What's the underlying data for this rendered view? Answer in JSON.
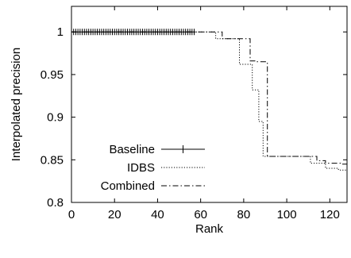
{
  "chart_data": {
    "type": "line",
    "title": "",
    "xlabel": "Rank",
    "ylabel": "Interpolated precision",
    "xlim": [
      0,
      128
    ],
    "ylim": [
      0.8,
      1.03
    ],
    "xticks": [
      0,
      20,
      40,
      60,
      80,
      100,
      120
    ],
    "yticks": [
      0.8,
      0.85,
      0.9,
      0.95,
      1
    ],
    "ytick_labels": [
      "0.8",
      "0.85",
      "0.9",
      "0.95",
      "1"
    ],
    "legend_position": "bottom-left",
    "series": [
      {
        "name": "Baseline",
        "style": "solid-with-plus-markers",
        "x": [
          0,
          57
        ],
        "y": [
          1.0,
          1.0
        ]
      },
      {
        "name": "IDBS",
        "style": "dotted",
        "x": [
          0,
          67,
          67,
          78,
          78,
          84,
          84,
          87,
          87,
          89,
          89,
          111,
          111,
          118,
          118,
          124,
          124,
          128
        ],
        "y": [
          1.0,
          1.0,
          0.992,
          0.992,
          0.962,
          0.962,
          0.932,
          0.932,
          0.895,
          0.895,
          0.854,
          0.854,
          0.846,
          0.846,
          0.84,
          0.84,
          0.838,
          0.838
        ]
      },
      {
        "name": "Combined",
        "style": "dash-dot",
        "x": [
          0,
          70,
          70,
          83,
          83,
          86,
          86,
          91,
          91,
          114,
          114,
          118,
          118,
          125,
          125,
          128
        ],
        "y": [
          1.0,
          1.0,
          0.992,
          0.992,
          0.966,
          0.966,
          0.965,
          0.965,
          0.854,
          0.854,
          0.849,
          0.849,
          0.846,
          0.846,
          0.845,
          0.845
        ]
      }
    ]
  }
}
